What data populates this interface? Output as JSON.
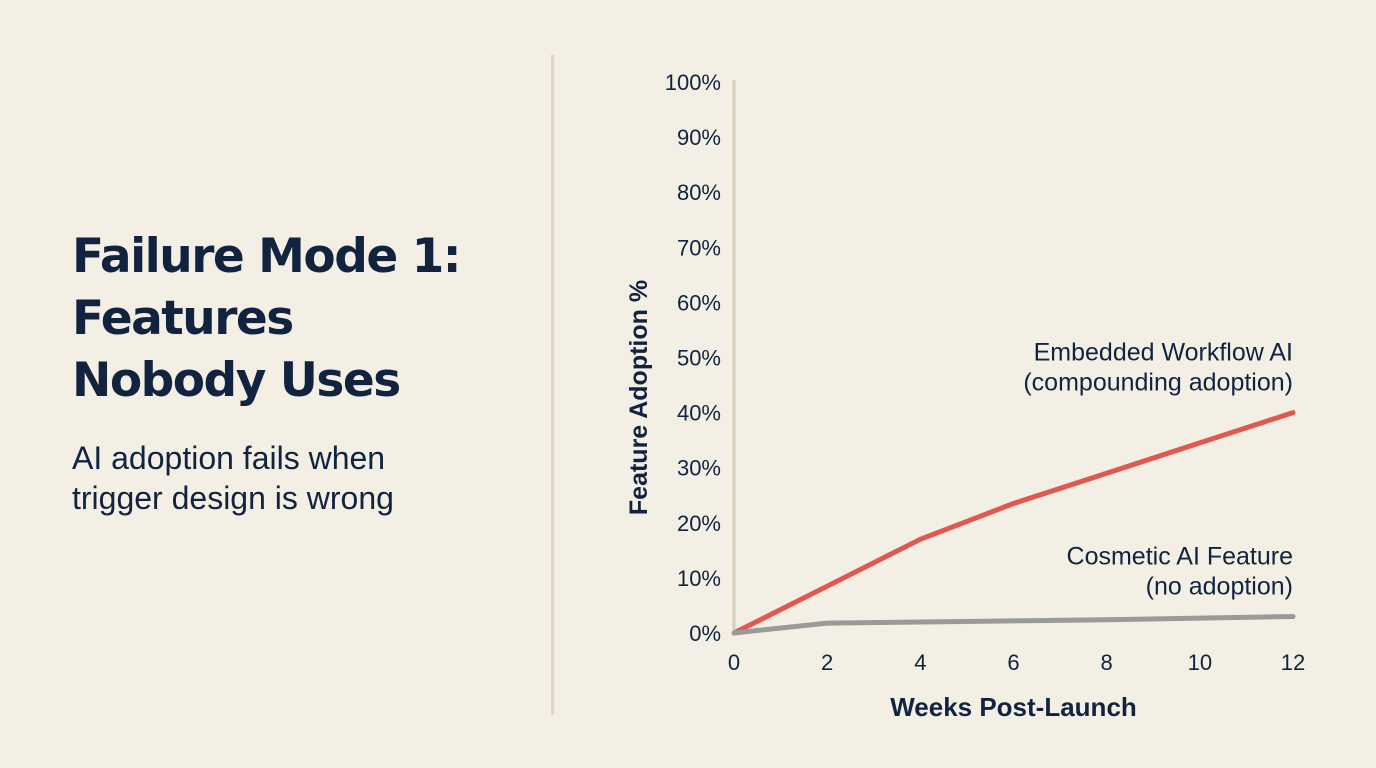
{
  "slide": {
    "title_lines": [
      "Failure Mode 1:",
      "Features",
      "Nobody Uses"
    ],
    "subtitle_lines": [
      "AI adoption fails when",
      "trigger design is wrong"
    ]
  },
  "chart_data": {
    "type": "line",
    "title": "",
    "xlabel": "Weeks Post-Launch",
    "ylabel": "Feature Adoption %",
    "xlim": [
      0,
      12
    ],
    "ylim": [
      0,
      100
    ],
    "x_ticks": [
      0,
      2,
      4,
      6,
      8,
      10,
      12
    ],
    "y_ticks": [
      0,
      10,
      20,
      30,
      40,
      50,
      60,
      70,
      80,
      90,
      100
    ],
    "y_tick_suffix": "%",
    "grid": false,
    "series": [
      {
        "name": "Embedded Workflow AI",
        "label_lines": [
          "Embedded Workflow AI",
          "(compounding adoption)"
        ],
        "color": "#e0584e",
        "x": [
          0,
          2,
          4,
          6,
          8,
          10,
          12
        ],
        "y": [
          0,
          8.5,
          17,
          23.5,
          29,
          34.5,
          40
        ]
      },
      {
        "name": "Cosmetic AI Feature",
        "label_lines": [
          "Cosmetic AI Feature",
          "(no adoption)"
        ],
        "color": "#9a9a98",
        "x": [
          0,
          2,
          4,
          6,
          8,
          10,
          12
        ],
        "y": [
          0,
          1.8,
          2,
          2.2,
          2.4,
          2.7,
          3
        ]
      }
    ]
  }
}
